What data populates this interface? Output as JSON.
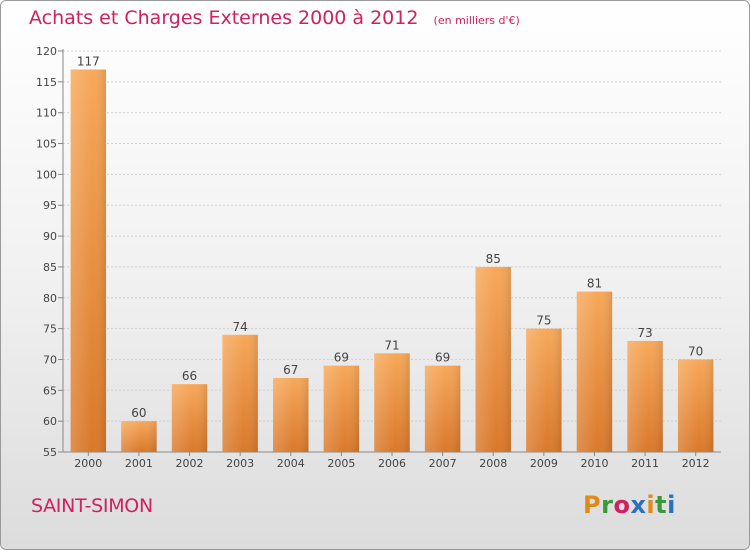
{
  "header": {
    "title": "Achats et Charges Externes 2000 à 2012",
    "subtitle": "(en milliers d'€)"
  },
  "footer": {
    "commune": "SAINT-SIMON",
    "logo": "Proxiti"
  },
  "colors": {
    "bar_light": "#f7a85a",
    "bar_dark": "#d9782a",
    "title": "#d02060",
    "logo_letters": [
      "#e08a1a",
      "#3a9a3a",
      "#d02060",
      "#2a70c0",
      "#e08a1a",
      "#3a9a3a",
      "#2a70c0"
    ]
  },
  "chart_data": {
    "type": "bar",
    "title": "Achats et Charges Externes 2000 à 2012",
    "subtitle": "(en milliers d'€)",
    "categories": [
      "2000",
      "2001",
      "2002",
      "2003",
      "2004",
      "2005",
      "2006",
      "2007",
      "2008",
      "2009",
      "2010",
      "2011",
      "2012"
    ],
    "values": [
      117,
      60,
      66,
      74,
      67,
      69,
      71,
      69,
      85,
      75,
      81,
      73,
      70
    ],
    "ylim": [
      55,
      120
    ],
    "yticks": [
      55,
      60,
      65,
      70,
      75,
      80,
      85,
      90,
      95,
      100,
      105,
      110,
      115,
      120
    ],
    "grid": true,
    "data_labels": true
  }
}
